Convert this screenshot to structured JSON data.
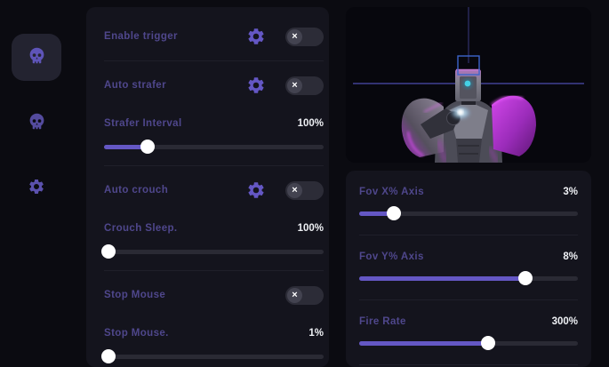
{
  "colors": {
    "accent": "#6457c4",
    "label": "#4f478c",
    "panel": "#14141d",
    "background": "#0b0b11",
    "magenta": "#c636dd",
    "esp_box": "#3c64cc"
  },
  "sidebar": {
    "items": [
      {
        "id": "trigger",
        "icon": "skull-icon",
        "active": true
      },
      {
        "id": "player",
        "icon": "skull-icon",
        "active": false
      },
      {
        "id": "settings",
        "icon": "gear-icon",
        "active": false
      }
    ]
  },
  "features": {
    "rows": [
      {
        "label": "Enable trigger",
        "type": "toggle",
        "gear": true,
        "state": "off"
      },
      {
        "label": "Auto strafer",
        "type": "toggle",
        "gear": true,
        "state": "off"
      },
      {
        "label": "Strafer Interval",
        "type": "slider",
        "value": "100%",
        "position": 20
      },
      {
        "label": "Auto crouch",
        "type": "toggle",
        "gear": true,
        "state": "off"
      },
      {
        "label": "Crouch Sleep.",
        "type": "slider",
        "value": "100%",
        "position": 2
      },
      {
        "label": "Stop Mouse",
        "type": "toggle",
        "gear": false,
        "state": "off"
      },
      {
        "label": "Stop Mouse.",
        "type": "slider",
        "value": "1%",
        "position": 2
      }
    ]
  },
  "preview": {
    "content": "robot-bust-3d-model with targeting crosshair and head esp box"
  },
  "aim": {
    "rows": [
      {
        "label": "Fov X% Axis",
        "value": "3%",
        "position": 16
      },
      {
        "label": "Fov Y% Axis",
        "value": "8%",
        "position": 76
      },
      {
        "label": "Fire Rate",
        "value": "300%",
        "position": 59
      }
    ]
  },
  "toggle": {
    "glyph": "×"
  }
}
